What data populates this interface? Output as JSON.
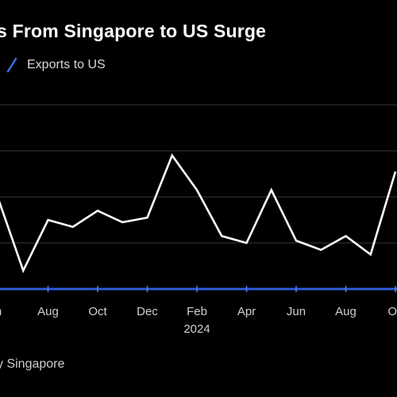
{
  "title": "s From Singapore to US Surge",
  "legend": {
    "label": "Exports to US"
  },
  "source": "y Singapore",
  "colors": {
    "background": "#000000",
    "line": "#ffffff",
    "baseline": "#2f5bd8",
    "grid": "#3a3a3a",
    "text": "#cfcfcf"
  },
  "chart_data": {
    "type": "line",
    "title": "s From Singapore to US Surge",
    "xlabel": "",
    "ylabel": "",
    "grid": true,
    "legend_placement": "top-left",
    "x_ticks": [
      "n",
      "Aug",
      "Oct",
      "Dec",
      "Feb",
      "Apr",
      "Jun",
      "Aug",
      "Oc"
    ],
    "x_sublabel": {
      "under": "Feb",
      "text": "2024"
    },
    "x_range": [
      0,
      16
    ],
    "y_range": [
      0,
      4
    ],
    "y_gridlines": [
      1,
      2,
      3,
      4
    ],
    "baseline_value": 0,
    "series": [
      {
        "name": "Exports to US",
        "x": [
          0,
          1,
          2,
          3,
          4,
          5,
          6,
          7,
          8,
          9,
          10,
          11,
          12,
          13,
          14,
          15,
          16
        ],
        "y": [
          1.95,
          0.4,
          1.5,
          1.35,
          1.7,
          1.45,
          1.55,
          2.9,
          2.15,
          1.15,
          1.0,
          2.15,
          1.05,
          0.85,
          1.15,
          0.75,
          2.55
        ]
      }
    ]
  }
}
